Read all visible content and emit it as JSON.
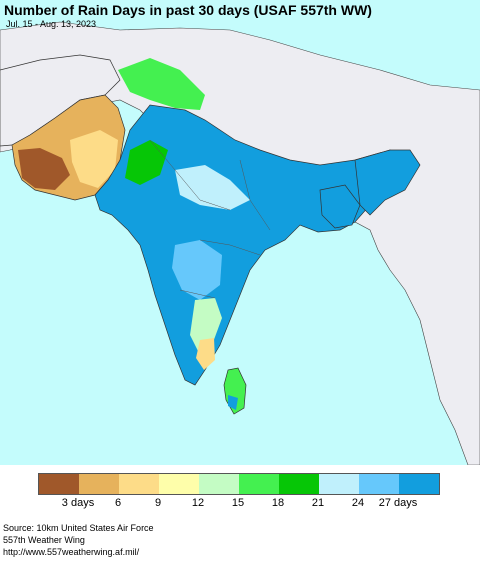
{
  "map": {
    "title": "Number of Rain Days in past 30 days (USAF 557th WW)",
    "subtitle": "Jul. 15 - Aug. 13, 2023",
    "colors": {
      "ocean": "#c4fcfc",
      "outside": "#ededf2",
      "border": "#333333"
    }
  },
  "legend": {
    "colors": [
      "#a0582a",
      "#e6b25c",
      "#fddc88",
      "#fefeaa",
      "#c4fcc4",
      "#44f050",
      "#06c606",
      "#c0f0fc",
      "#66c8fb",
      "#129ede"
    ],
    "labels": [
      "3 days",
      "6",
      "9",
      "12",
      "15",
      "18",
      "21",
      "24",
      "27 days"
    ]
  },
  "credits": {
    "line1": "Source: 10km United States Air Force",
    "line2": "557th Weather Wing",
    "line3": "http://www.557weatherwing.af.mil/"
  }
}
